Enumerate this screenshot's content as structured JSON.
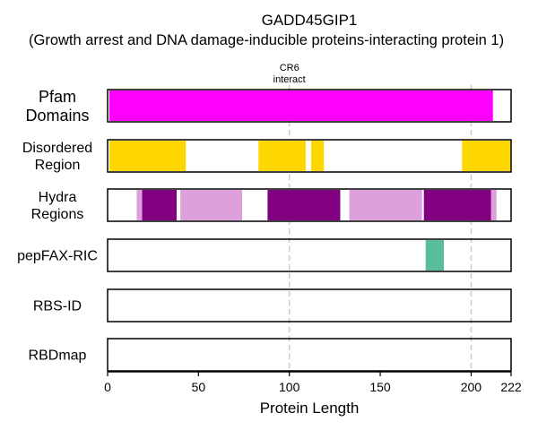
{
  "chart_data": {
    "type": "bar",
    "title": "GADD45GIP1",
    "subtitle": "(Growth arrest and DNA damage-inducible proteins-interacting protein 1)",
    "xlabel": "Protein Length",
    "ylabel": "",
    "xlim": [
      0,
      222
    ],
    "xticks": [
      0,
      50,
      100,
      150,
      200,
      222
    ],
    "vlines": [
      100,
      200
    ],
    "grid": false,
    "annotations": [
      {
        "text": "CR6\ninteract",
        "x": 100
      }
    ],
    "tracks": [
      {
        "label": "Pfam\nDomains",
        "segments": [
          {
            "start": 1,
            "end": 212,
            "color": "#ff00ff",
            "opacity": 1
          }
        ]
      },
      {
        "label": "Disordered\nRegion",
        "segments": [
          {
            "start": 1,
            "end": 43,
            "color": "#ffd700",
            "opacity": 1
          },
          {
            "start": 83,
            "end": 109,
            "color": "#ffd700",
            "opacity": 1
          },
          {
            "start": 112,
            "end": 119,
            "color": "#ffd700",
            "opacity": 1
          },
          {
            "start": 195,
            "end": 222,
            "color": "#ffd700",
            "opacity": 1
          }
        ]
      },
      {
        "label": "Hydra\nRegions",
        "segments": [
          {
            "start": 16,
            "end": 19,
            "color": "#dda0dd",
            "opacity": 1
          },
          {
            "start": 19,
            "end": 38,
            "color": "#800080",
            "opacity": 1
          },
          {
            "start": 40,
            "end": 74,
            "color": "#dda0dd",
            "opacity": 1
          },
          {
            "start": 88,
            "end": 128,
            "color": "#800080",
            "opacity": 1
          },
          {
            "start": 133,
            "end": 173,
            "color": "#dda0dd",
            "opacity": 1
          },
          {
            "start": 174,
            "end": 211,
            "color": "#800080",
            "opacity": 1
          },
          {
            "start": 211,
            "end": 214,
            "color": "#dda0dd",
            "opacity": 1
          }
        ]
      },
      {
        "label": "pepFAX-RIC",
        "segments": [
          {
            "start": 175,
            "end": 185,
            "color": "#3cb48a",
            "opacity": 0.85
          }
        ]
      },
      {
        "label": "RBS-ID",
        "segments": []
      },
      {
        "label": "RBDmap",
        "segments": []
      }
    ]
  }
}
